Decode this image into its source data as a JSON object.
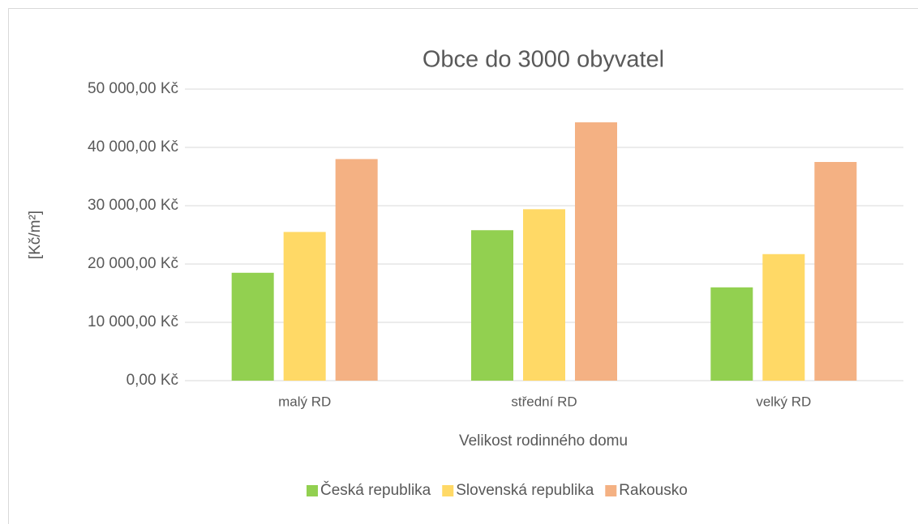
{
  "chart_data": {
    "type": "bar",
    "title": "Obce do 3000 obyvatel",
    "x_label": "Velikost rodinného domu",
    "y_label": "[Kč/m²]",
    "categories": [
      "malý RD",
      "střední RD",
      "velký RD"
    ],
    "series": [
      {
        "name": "Česká republika",
        "color": "#92d050",
        "values": [
          18500,
          25800,
          16000
        ]
      },
      {
        "name": "Slovenská republika",
        "color": "#ffd966",
        "values": [
          25500,
          29400,
          21700
        ]
      },
      {
        "name": "Rakousko",
        "color": "#f4b183",
        "values": [
          38000,
          44300,
          37500
        ]
      }
    ],
    "ylim": [
      0,
      50000
    ],
    "yticks": [
      {
        "value": 0,
        "label": "0,00 Kč"
      },
      {
        "value": 10000,
        "label": "10 000,00 Kč"
      },
      {
        "value": 20000,
        "label": "20 000,00 Kč"
      },
      {
        "value": 30000,
        "label": "30 000,00 Kč"
      },
      {
        "value": 40000,
        "label": "40 000,00 Kč"
      },
      {
        "value": 50000,
        "label": "50 000,00 Kč"
      }
    ],
    "grid": true,
    "legend": "bottom"
  }
}
